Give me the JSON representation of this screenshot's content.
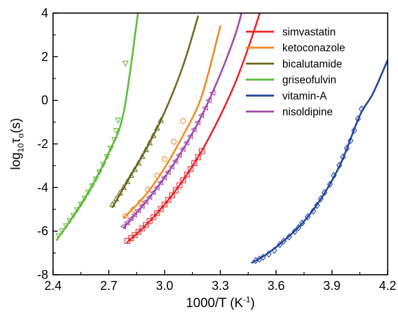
{
  "chart_data": {
    "type": "line",
    "xlabel": "1000/T (K",
    "xlabel_superscript": "-1",
    "xlabel_suffix": ")",
    "ylabel_prefix": "log",
    "ylabel_subscript": "10",
    "ylabel_main": "τ",
    "ylabel_main_subscript": "α",
    "ylabel_suffix": "(s)",
    "xlim": [
      2.4,
      4.2
    ],
    "ylim": [
      -8,
      4
    ],
    "xticks": [
      2.4,
      2.7,
      3.0,
      3.3,
      3.6,
      3.9,
      4.2
    ],
    "xtick_labels": [
      "2.4",
      "2.7",
      "3.0",
      "3.3",
      "3.6",
      "3.9",
      "4.2"
    ],
    "yticks": [
      -8,
      -6,
      -4,
      -2,
      0,
      2,
      4
    ],
    "ytick_labels": [
      "-8",
      "-6",
      "-4",
      "-2",
      "0",
      "2",
      "4"
    ],
    "grid": false,
    "legend_position": "top-right",
    "series": [
      {
        "name": "simvastatin",
        "color": "#e8262a",
        "marker": "square",
        "points": [
          [
            2.8,
            -6.45
          ],
          [
            2.82,
            -6.32
          ],
          [
            2.84,
            -6.18
          ],
          [
            2.86,
            -6.03
          ],
          [
            2.88,
            -5.87
          ],
          [
            2.9,
            -5.71
          ],
          [
            2.92,
            -5.54
          ],
          [
            2.94,
            -5.36
          ],
          [
            2.96,
            -5.17
          ],
          [
            2.98,
            -4.98
          ],
          [
            3.0,
            -4.78
          ],
          [
            3.02,
            -4.57
          ],
          [
            3.04,
            -4.36
          ],
          [
            3.06,
            -4.13
          ],
          [
            3.08,
            -3.9
          ],
          [
            3.1,
            -3.66
          ],
          [
            3.12,
            -3.41
          ],
          [
            3.14,
            -3.15
          ],
          [
            3.16,
            -2.88
          ],
          [
            3.18,
            -2.61
          ],
          [
            3.2,
            -2.33
          ]
        ],
        "curve": [
          [
            2.8,
            -6.5
          ],
          [
            2.9,
            -5.72
          ],
          [
            3.0,
            -4.78
          ],
          [
            3.1,
            -3.66
          ],
          [
            3.2,
            -2.32
          ],
          [
            3.3,
            -0.7
          ],
          [
            3.38,
            0.8
          ],
          [
            3.45,
            2.4
          ],
          [
            3.52,
            4.2
          ]
        ]
      },
      {
        "name": "ketoconazole",
        "color": "#f08a2a",
        "marker": "circle",
        "points": [
          [
            2.79,
            -5.3
          ],
          [
            2.83,
            -5.02
          ],
          [
            2.87,
            -4.68
          ],
          [
            2.91,
            -4.1
          ],
          [
            2.96,
            -3.45
          ],
          [
            3.0,
            -2.7
          ],
          [
            3.05,
            -1.9
          ],
          [
            3.1,
            -0.95
          ]
        ],
        "curve": [
          [
            2.78,
            -5.4
          ],
          [
            2.9,
            -4.32
          ],
          [
            3.0,
            -3.1
          ],
          [
            3.1,
            -1.6
          ],
          [
            3.2,
            0.2
          ],
          [
            3.3,
            3.4
          ]
        ]
      },
      {
        "name": "bicalutamide",
        "color": "#6e6a1e",
        "marker": "triangle-up",
        "points": [
          [
            2.72,
            -4.78
          ],
          [
            2.74,
            -4.52
          ],
          [
            2.76,
            -4.26
          ],
          [
            2.78,
            -4.0
          ],
          [
            2.8,
            -3.73
          ],
          [
            2.82,
            -3.45
          ],
          [
            2.84,
            -3.17
          ],
          [
            2.86,
            -2.88
          ],
          [
            2.88,
            -2.58
          ],
          [
            2.9,
            -2.27
          ],
          [
            2.92,
            -1.95
          ],
          [
            2.94,
            -1.62
          ],
          [
            2.96,
            -1.28
          ],
          [
            2.98,
            -0.93
          ]
        ],
        "curve": [
          [
            2.72,
            -4.9
          ],
          [
            2.8,
            -3.72
          ],
          [
            2.9,
            -2.25
          ],
          [
            3.0,
            -0.55
          ],
          [
            3.1,
            1.6
          ],
          [
            3.18,
            3.85
          ]
        ]
      },
      {
        "name": "griseofulvin",
        "color": "#5dbb3a",
        "marker": "triangle-down",
        "points": [
          [
            2.43,
            -6.2
          ],
          [
            2.45,
            -5.98
          ],
          [
            2.47,
            -5.75
          ],
          [
            2.49,
            -5.51
          ],
          [
            2.51,
            -5.27
          ],
          [
            2.53,
            -5.02
          ],
          [
            2.55,
            -4.76
          ],
          [
            2.57,
            -4.49
          ],
          [
            2.59,
            -4.21
          ],
          [
            2.61,
            -3.92
          ],
          [
            2.63,
            -3.61
          ],
          [
            2.65,
            -3.28
          ],
          [
            2.67,
            -2.94
          ],
          [
            2.69,
            -2.58
          ],
          [
            2.71,
            -2.2
          ],
          [
            2.73,
            -1.8
          ],
          [
            2.74,
            -1.38
          ],
          [
            2.75,
            -0.9
          ],
          [
            2.79,
            1.7
          ]
        ],
        "curve": [
          [
            2.42,
            -6.4
          ],
          [
            2.5,
            -5.42
          ],
          [
            2.6,
            -4.06
          ],
          [
            2.7,
            -2.4
          ],
          [
            2.78,
            -0.55
          ],
          [
            2.86,
            4.2
          ]
        ]
      },
      {
        "name": "vitamin-A",
        "color": "#23469c",
        "marker": "diamond",
        "points": [
          [
            3.49,
            -7.35
          ],
          [
            3.51,
            -7.28
          ],
          [
            3.53,
            -7.2
          ],
          [
            3.56,
            -7.05
          ],
          [
            3.59,
            -6.88
          ],
          [
            3.62,
            -6.62
          ],
          [
            3.64,
            -6.46
          ],
          [
            3.67,
            -6.26
          ],
          [
            3.7,
            -6.02
          ],
          [
            3.72,
            -5.84
          ],
          [
            3.74,
            -5.63
          ],
          [
            3.77,
            -5.35
          ],
          [
            3.8,
            -5.08
          ],
          [
            3.82,
            -4.82
          ],
          [
            3.84,
            -4.52
          ],
          [
            3.86,
            -4.23
          ],
          [
            3.89,
            -3.85
          ],
          [
            3.91,
            -3.45
          ],
          [
            3.94,
            -2.98
          ],
          [
            3.96,
            -2.6
          ],
          [
            3.98,
            -2.2
          ],
          [
            4.0,
            -1.85
          ],
          [
            4.02,
            -1.38
          ],
          [
            4.04,
            -0.85
          ],
          [
            4.06,
            -0.4
          ]
        ],
        "curve": [
          [
            3.47,
            -7.45
          ],
          [
            3.55,
            -7.05
          ],
          [
            3.65,
            -6.38
          ],
          [
            3.75,
            -5.55
          ],
          [
            3.85,
            -4.4
          ],
          [
            3.95,
            -2.85
          ],
          [
            4.05,
            -0.7
          ],
          [
            4.12,
            0.3
          ],
          [
            4.2,
            1.85
          ]
        ]
      },
      {
        "name": "nisoldipine",
        "color": "#a34ba7",
        "marker": "triangle-left",
        "points": [
          [
            2.78,
            -5.78
          ],
          [
            2.8,
            -5.6
          ],
          [
            2.82,
            -5.42
          ],
          [
            2.84,
            -5.24
          ],
          [
            2.86,
            -5.05
          ],
          [
            2.88,
            -4.85
          ],
          [
            2.9,
            -4.65
          ],
          [
            2.92,
            -4.44
          ],
          [
            2.94,
            -4.22
          ],
          [
            2.96,
            -4.0
          ],
          [
            2.98,
            -3.77
          ],
          [
            3.0,
            -3.53
          ],
          [
            3.02,
            -3.29
          ],
          [
            3.04,
            -3.04
          ],
          [
            3.06,
            -2.78
          ],
          [
            3.08,
            -2.51
          ],
          [
            3.1,
            -2.23
          ],
          [
            3.12,
            -1.94
          ],
          [
            3.14,
            -1.64
          ],
          [
            3.16,
            -1.33
          ],
          [
            3.18,
            -1.01
          ],
          [
            3.2,
            -0.68
          ],
          [
            3.22,
            -0.34
          ],
          [
            3.24,
            0.0
          ],
          [
            3.26,
            0.35
          ]
        ],
        "curve": [
          [
            2.78,
            -5.85
          ],
          [
            2.9,
            -4.66
          ],
          [
            3.0,
            -3.54
          ],
          [
            3.1,
            -2.24
          ],
          [
            3.2,
            -0.7
          ],
          [
            3.3,
            1.2
          ],
          [
            3.38,
            3.0
          ],
          [
            3.42,
            4.2
          ]
        ]
      }
    ]
  }
}
